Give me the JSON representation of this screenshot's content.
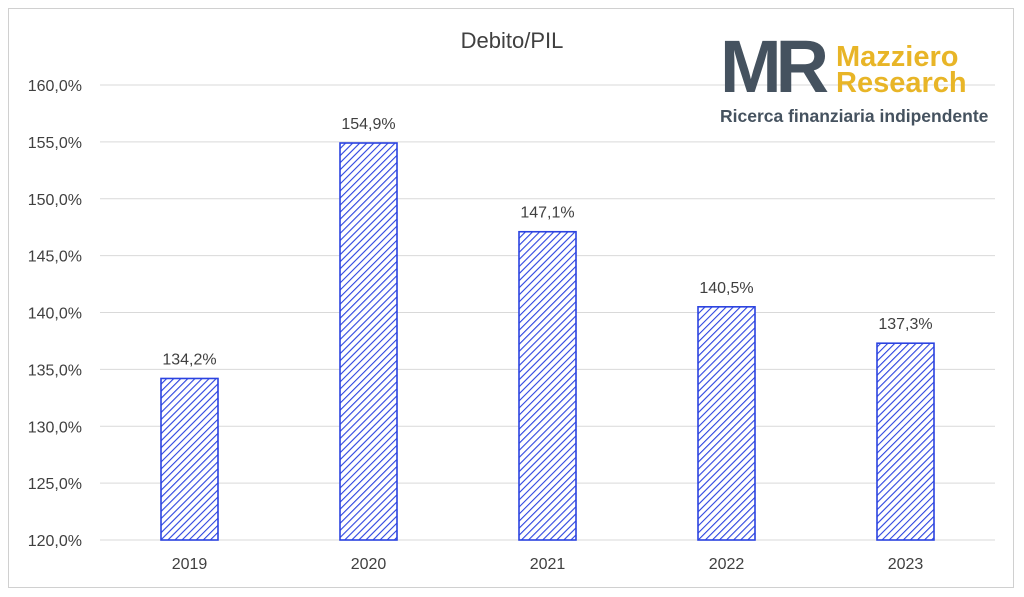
{
  "chart_data": {
    "type": "bar",
    "title": "Debito/PIL",
    "categories": [
      "2019",
      "2020",
      "2021",
      "2022",
      "2023"
    ],
    "values": [
      134.2,
      154.9,
      147.1,
      140.5,
      137.3
    ],
    "data_labels": [
      "134,2%",
      "154,9%",
      "147,1%",
      "140,5%",
      "137,3%"
    ],
    "ylim": [
      120,
      160
    ],
    "yticks": [
      120,
      125,
      130,
      135,
      140,
      145,
      150,
      155,
      160
    ],
    "ytick_labels": [
      "120,0%",
      "125,0%",
      "130,0%",
      "135,0%",
      "140,0%",
      "145,0%",
      "150,0%",
      "155,0%",
      "160,0%"
    ],
    "grid": true,
    "legend": "none",
    "bar_fill": "hatched",
    "bar_color": "#2b43e0"
  },
  "logo": {
    "mark": "MR",
    "name_line1": "Mazziero",
    "name_line2": "Research",
    "tagline": "Ricerca finanziaria indipendente",
    "mark_color": "#45525f",
    "name_color": "#e8b527"
  }
}
